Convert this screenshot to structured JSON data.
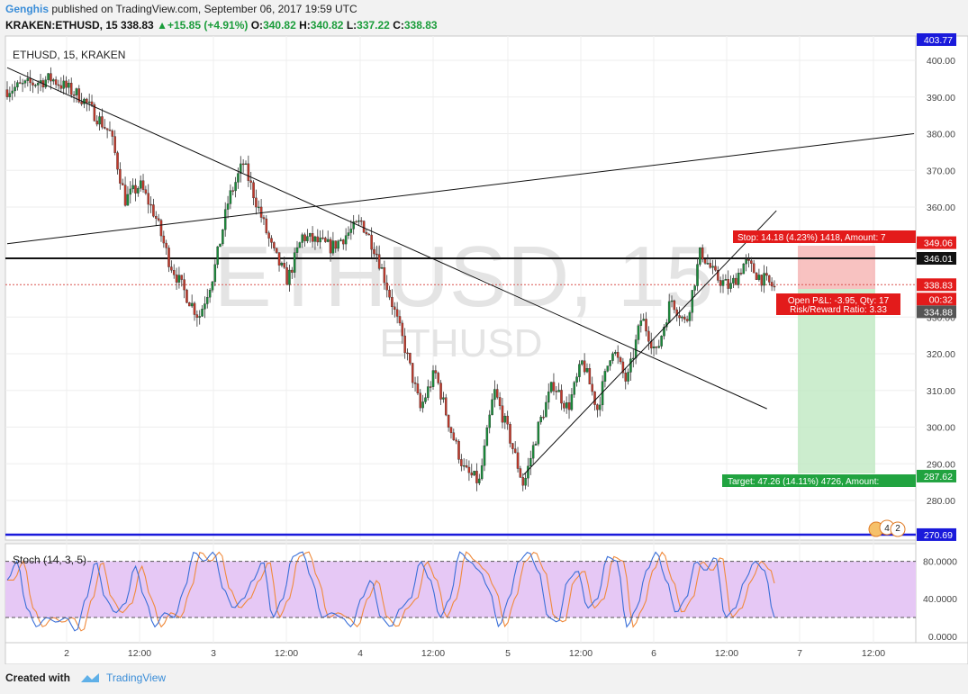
{
  "header": {
    "author": "Genghis",
    "published_text": "published on TradingView.com, September 06, 2017 19:59 UTC",
    "symbol_line": "KRAKEN:ETHUSD, 15",
    "last": "338.83",
    "change": "+15.85 (+4.91%)",
    "o_label": "O:",
    "o_value": "340.82",
    "h_label": "H:",
    "h_value": "340.82",
    "l_label": "L:",
    "l_value": "337.22",
    "c_label": "C:",
    "c_value": "338.83"
  },
  "watermark": {
    "big": "ETHUSD, 15",
    "small": "ETHUSD"
  },
  "footer": {
    "created_with": "Created with",
    "brand": "TradingView"
  },
  "colors": {
    "up": "#1a8a3a",
    "down": "#c0392b",
    "accent": "#3a8dd8",
    "stop_zone": "#f4a9a8",
    "target_zone": "#b7e4b9",
    "stoch_fill": "#e6c8f5",
    "support": "#0000cc"
  },
  "chart_data": [
    {
      "type": "candlestick",
      "title": "ETHUSD, 15, KRAKEN",
      "ylim": [
        276,
        405
      ],
      "y_ticks": [
        400,
        390,
        380,
        370,
        360,
        330,
        320,
        310,
        300,
        290,
        280
      ],
      "y_tick_labels": [
        "400.00",
        "390.00",
        "380.00",
        "370.00",
        "360.00",
        "330.00",
        "320.00",
        "310.00",
        "300.00",
        "290.00",
        "280.00"
      ],
      "x_tick_labels": [
        "2",
        "12:00",
        "3",
        "12:00",
        "4",
        "12:00",
        "5",
        "12:00",
        "6",
        "12:00",
        "7",
        "12:00"
      ],
      "price_path": [
        [
          0,
          392
        ],
        [
          3,
          395
        ],
        [
          5,
          390
        ],
        [
          7,
          380
        ],
        [
          8,
          362
        ],
        [
          9,
          366
        ],
        [
          10,
          358
        ],
        [
          11,
          345
        ],
        [
          12,
          337
        ],
        [
          13,
          330
        ],
        [
          14,
          342
        ],
        [
          15,
          362
        ],
        [
          16,
          372
        ],
        [
          17,
          360
        ],
        [
          18,
          348
        ],
        [
          19,
          340
        ],
        [
          20,
          352
        ],
        [
          22,
          349
        ],
        [
          24,
          356
        ],
        [
          25,
          348
        ],
        [
          26,
          335
        ],
        [
          27,
          321
        ],
        [
          28,
          305
        ],
        [
          29,
          315
        ],
        [
          30,
          300
        ],
        [
          31,
          288
        ],
        [
          32,
          285
        ],
        [
          33,
          310
        ],
        [
          34,
          298
        ],
        [
          35,
          284
        ],
        [
          36,
          300
        ],
        [
          37,
          312
        ],
        [
          38,
          305
        ],
        [
          39,
          318
        ],
        [
          40,
          305
        ],
        [
          41,
          322
        ],
        [
          42,
          312
        ],
        [
          43,
          330
        ],
        [
          44,
          320
        ],
        [
          45,
          335
        ],
        [
          46,
          328
        ],
        [
          47,
          348
        ],
        [
          48,
          341
        ],
        [
          49,
          338
        ],
        [
          50,
          345
        ],
        [
          51,
          341
        ],
        [
          52,
          338
        ]
      ],
      "price_labels": {
        "top": "403.77",
        "stop_price": "349.06",
        "resistance": "346.01",
        "last": "338.83",
        "countdown": "00:32",
        "entry": "334.88",
        "target_price": "287.62",
        "support": "270.69"
      },
      "levels": {
        "resistance": 346.01,
        "last": 338.83,
        "entry": 334.88,
        "stop": 349.06,
        "target": 287.62,
        "support": 270.69
      },
      "position_labels": {
        "stop": "Stop: 14.18 (4.23%) 1418, Amount: 7",
        "open_pl": "Open P&L: -3.95, Qty: 17",
        "risk_reward": "Risk/Reward Ratio: 3.33",
        "target": "Target: 47.26 (14.11%) 4726, Amount:"
      },
      "trend_lines": [
        {
          "from": [
            0,
            398
          ],
          "to": [
            46,
            308
          ]
        },
        {
          "from": [
            0,
            350
          ],
          "to": [
            51,
            380
          ]
        },
        {
          "from": [
            35,
            287
          ],
          "to": [
            50,
            357
          ]
        }
      ],
      "event_badges": [
        "4",
        "2"
      ]
    },
    {
      "type": "line",
      "title": "Stoch (14, 3, 5)",
      "ylim": [
        -5,
        95
      ],
      "y_ticks": [
        80,
        40,
        0
      ],
      "y_tick_labels": [
        "80.0000",
        "40.0000",
        "0.0000"
      ],
      "bands": [
        20,
        80
      ],
      "series": [
        {
          "color": "#3a6fd8",
          "values": [
            60,
            80,
            30,
            10,
            20,
            15,
            20,
            5,
            40,
            80,
            40,
            25,
            35,
            75,
            40,
            10,
            25,
            20,
            50,
            90,
            80,
            90,
            50,
            30,
            40,
            60,
            80,
            20,
            40,
            85,
            90,
            60,
            20,
            25,
            20,
            10,
            40,
            60,
            20,
            10,
            30,
            40,
            80,
            60,
            20,
            40,
            90,
            80,
            70,
            50,
            10,
            40,
            80,
            90,
            70,
            20,
            15,
            60,
            70,
            30,
            40,
            85,
            80,
            10,
            30,
            70,
            90,
            60,
            25,
            40,
            80,
            70,
            85,
            20,
            30,
            60,
            80,
            70,
            20
          ]
        }
      ]
    }
  ]
}
